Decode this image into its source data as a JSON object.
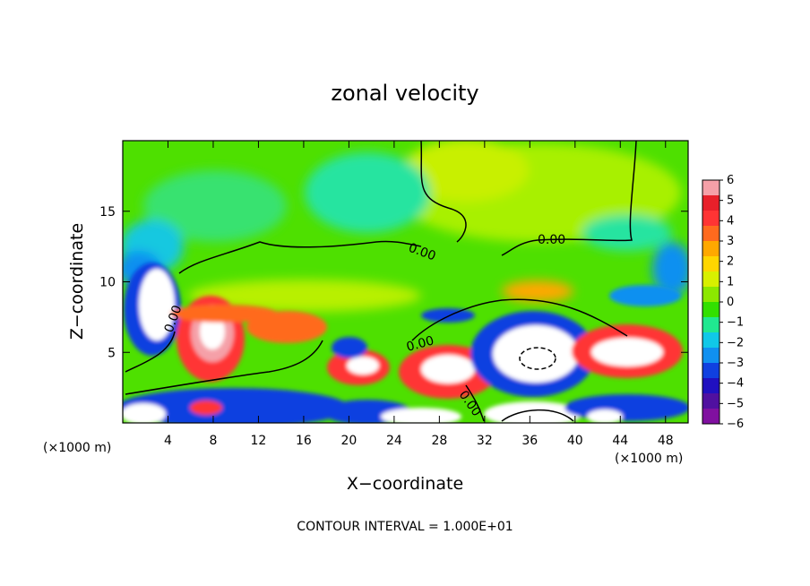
{
  "chart_data": {
    "type": "heatmap",
    "title": "zonal velocity",
    "xlabel": "X−coordinate",
    "ylabel": "Z−coordinate",
    "x_unit": "(×1000 m)",
    "y_unit": "(×1000 m)",
    "xlim": [
      0,
      50
    ],
    "ylim": [
      0,
      20
    ],
    "x_ticks": [
      4,
      8,
      12,
      16,
      20,
      24,
      28,
      32,
      36,
      40,
      44,
      48
    ],
    "y_ticks": [
      5,
      10,
      15
    ],
    "colorbar": {
      "ticks": [
        "6",
        "5",
        "4",
        "3",
        "2",
        "1",
        "0",
        "−1",
        "−2",
        "−3",
        "−4",
        "−5",
        "−6"
      ],
      "colors": [
        "#f5a0a8",
        "#e8202a",
        "#ff3434",
        "#ff6a1e",
        "#ffa800",
        "#ffd600",
        "#d8f000",
        "#8ce800",
        "#32e000",
        "#20e890",
        "#10c8e8",
        "#1090f0",
        "#1040e0",
        "#2010c0",
        "#5010a0",
        "#8010a0"
      ]
    },
    "contour_labels": [
      "0.00",
      "0.00",
      "0.00",
      "0.00",
      "0.00"
    ],
    "note": "CONTOUR INTERVAL = 1.000E+01",
    "grid": false
  }
}
